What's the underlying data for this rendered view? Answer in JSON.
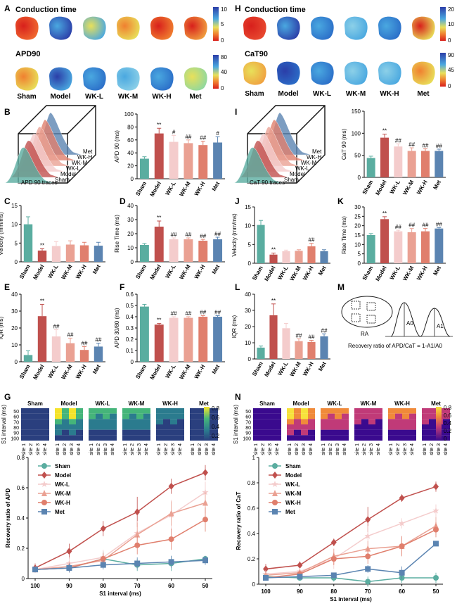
{
  "colors": {
    "sham": "#5aada0",
    "model": "#c0504d",
    "wkl": "#f4cccc",
    "wkm": "#eaa193",
    "wkh": "#e07f6d",
    "met": "#5b84b1"
  },
  "groups": [
    "Sham",
    "Model",
    "WK-L",
    "WK-M",
    "WK-H",
    "Met"
  ],
  "panels": {
    "A": {
      "letter": "A",
      "row1": "Conduction time",
      "row2": "APD90",
      "scale1": [
        "10",
        "5",
        "0"
      ],
      "scale2": [
        "80",
        "40",
        "0"
      ]
    },
    "H": {
      "letter": "H",
      "row1": "Conduction time",
      "row2": "CaT90",
      "scale1": [
        "20",
        "10",
        "0"
      ],
      "scale2": [
        "90",
        "45",
        "0"
      ]
    },
    "B": {
      "letter": "B",
      "traces_label": "APD 90  traces",
      "stack": [
        "Met",
        "WK-H",
        "WK-M",
        "WK-L",
        "Model",
        "Sham"
      ]
    },
    "I": {
      "letter": "I",
      "traces_label": "CaT 90  traces",
      "stack": [
        "Met",
        "WK-H",
        "WK-M",
        "WK-L",
        "Model",
        "Sham"
      ]
    },
    "C": {
      "letter": "C"
    },
    "D": {
      "letter": "D"
    },
    "E": {
      "letter": "E"
    },
    "F": {
      "letter": "F"
    },
    "J": {
      "letter": "J"
    },
    "K": {
      "letter": "K"
    },
    "L": {
      "letter": "L"
    },
    "M": {
      "letter": "M",
      "ra": "RA",
      "a0": "A0",
      "a1": "A1",
      "formula": "Recovery ratio of APD/CaT = 1-A1/A0"
    },
    "G": {
      "letter": "G",
      "ylabel": "S1 interval (ms)",
      "scale": [
        "0.8",
        "0.6",
        "0.4",
        "0.2"
      ],
      "sites": [
        "site 1",
        "site 2",
        "site 3",
        "site 4"
      ],
      "yticks": [
        "50",
        "60",
        "70",
        "80",
        "90",
        "100"
      ]
    },
    "N": {
      "letter": "N",
      "ylabel": "S1 interval (ms)",
      "scale": [
        "0.8",
        "0.6",
        "0.4",
        "0.2",
        "0"
      ],
      "sites": [
        "site 1",
        "site 2",
        "site 3",
        "site 4"
      ],
      "yticks": [
        "50",
        "60",
        "70",
        "80",
        "90",
        "100"
      ]
    }
  },
  "chart_data": [
    {
      "id": "B",
      "type": "bar",
      "ylabel": "APD 90 (ms)",
      "ylim": [
        0,
        100
      ],
      "yticks": [
        0,
        20,
        40,
        60,
        80,
        100
      ],
      "categories": [
        "Sham",
        "Model",
        "WK-L",
        "WK-M",
        "WK-H",
        "Met"
      ],
      "values": [
        31,
        70,
        57,
        55,
        52,
        56
      ],
      "errors": [
        3,
        8,
        10,
        5,
        6,
        9
      ],
      "annotations": [
        "",
        "**",
        "#",
        "##",
        "##",
        "#"
      ]
    },
    {
      "id": "I",
      "type": "bar",
      "ylabel": "CaT 90 (ms)",
      "ylim": [
        0,
        150
      ],
      "yticks": [
        0,
        50,
        100,
        150
      ],
      "categories": [
        "Sham",
        "Model",
        "WK-L",
        "WK-M",
        "WK-H",
        "Met"
      ],
      "values": [
        44,
        90,
        70,
        60,
        60,
        60
      ],
      "errors": [
        4,
        8,
        6,
        7,
        5,
        4
      ],
      "annotations": [
        "",
        "**",
        "##",
        "##",
        "##",
        "##"
      ]
    },
    {
      "id": "C",
      "type": "bar",
      "ylabel": "Velocity (mm/ms)",
      "ylim": [
        0,
        15
      ],
      "yticks": [
        0,
        5,
        10,
        15
      ],
      "categories": [
        "Sham",
        "Model",
        "WK-L",
        "WK-M",
        "WK-H",
        "Met"
      ],
      "values": [
        10,
        3,
        4.2,
        4.6,
        4.4,
        4.3
      ],
      "errors": [
        2,
        0.5,
        1.2,
        1,
        0.8,
        0.9
      ],
      "annotations": [
        "",
        "**",
        "",
        "",
        "",
        ""
      ]
    },
    {
      "id": "D",
      "type": "bar",
      "ylabel": "Rise Time (ms)",
      "ylim": [
        0,
        40
      ],
      "yticks": [
        0,
        10,
        20,
        30,
        40
      ],
      "categories": [
        "Sham",
        "Model",
        "WK-L",
        "WK-M",
        "WK-H",
        "Met"
      ],
      "values": [
        12,
        25,
        16,
        16,
        15,
        16
      ],
      "errors": [
        1,
        4,
        1,
        1,
        1,
        1.5
      ],
      "annotations": [
        "",
        "**",
        "##",
        "##",
        "##",
        "##"
      ]
    },
    {
      "id": "E",
      "type": "bar",
      "ylabel": "IQR (ms)",
      "ylim": [
        0,
        40
      ],
      "yticks": [
        0,
        10,
        20,
        30,
        40
      ],
      "categories": [
        "Sham",
        "Model",
        "WK-L",
        "WK-M",
        "WK-H",
        "Met"
      ],
      "values": [
        4,
        27,
        15,
        11,
        7,
        9
      ],
      "errors": [
        2.5,
        7,
        4,
        3,
        2,
        2
      ],
      "annotations": [
        "",
        "**",
        "##",
        "##",
        "##",
        "##"
      ]
    },
    {
      "id": "F",
      "type": "bar",
      "ylabel": "APD 30/80 (ms)",
      "ylim": [
        0,
        0.6
      ],
      "yticks": [
        0,
        0.1,
        0.2,
        0.3,
        0.4,
        0.5,
        0.6
      ],
      "categories": [
        "Sham",
        "Model",
        "WK-L",
        "WK-M",
        "WK-H",
        "Met"
      ],
      "values": [
        0.49,
        0.33,
        0.39,
        0.39,
        0.4,
        0.4
      ],
      "errors": [
        0.02,
        0.01,
        0.01,
        0.01,
        0.01,
        0.01
      ],
      "annotations": [
        "",
        "**",
        "##",
        "##",
        "##",
        "##"
      ]
    },
    {
      "id": "J",
      "type": "bar",
      "ylabel": "Velocity (mm/ms)",
      "ylim": [
        0,
        15
      ],
      "yticks": [
        0,
        5,
        10,
        15
      ],
      "categories": [
        "Sham",
        "Model",
        "WK-L",
        "WK-M",
        "WK-H",
        "Met"
      ],
      "values": [
        10.2,
        2.3,
        3.2,
        3.3,
        4.5,
        3.2
      ],
      "errors": [
        1.2,
        0.4,
        0.3,
        0.3,
        0.8,
        0.4
      ],
      "annotations": [
        "",
        "**",
        "",
        "",
        "##",
        ""
      ]
    },
    {
      "id": "K",
      "type": "bar",
      "ylabel": "Rise Time (ms)",
      "ylim": [
        0,
        30
      ],
      "yticks": [
        0,
        5,
        10,
        15,
        20,
        25,
        30
      ],
      "categories": [
        "Sham",
        "Model",
        "WK-L",
        "WK-M",
        "WK-H",
        "Met"
      ],
      "values": [
        15,
        23.5,
        17,
        16.5,
        17,
        18.5
      ],
      "errors": [
        0.8,
        1.3,
        0.6,
        2,
        1.5,
        0.5
      ],
      "annotations": [
        "",
        "**",
        "##",
        "##",
        "##",
        "##"
      ]
    },
    {
      "id": "L",
      "type": "bar",
      "ylabel": "IQR (ms)",
      "ylim": [
        0,
        40
      ],
      "yticks": [
        0,
        10,
        20,
        30,
        40
      ],
      "categories": [
        "Sham",
        "Model",
        "WK-L",
        "WK-M",
        "WK-H",
        "Met"
      ],
      "values": [
        7,
        27,
        19,
        11,
        10.5,
        14
      ],
      "errors": [
        1,
        7,
        3,
        1.5,
        1,
        1.5
      ],
      "annotations": [
        "",
        "**",
        "",
        "##",
        "##",
        "##"
      ]
    },
    {
      "id": "G",
      "type": "line",
      "ylabel": "Recovery ratio of APD",
      "xlabel": "S1 interval (ms)",
      "x": [
        100,
        90,
        80,
        70,
        60,
        50
      ],
      "ylim": [
        0,
        0.8
      ],
      "yticks": [
        0,
        0.2,
        0.4,
        0.6,
        0.8
      ],
      "series": [
        {
          "name": "Sham",
          "marker": "circle",
          "values": [
            0.06,
            0.07,
            0.13,
            0.09,
            0.1,
            0.13
          ],
          "errors": [
            0.02,
            0.03,
            0.05,
            0.04,
            0.05,
            0.02
          ]
        },
        {
          "name": "Model",
          "marker": "diamond",
          "values": [
            0.07,
            0.18,
            0.33,
            0.44,
            0.61,
            0.7
          ],
          "errors": [
            0.03,
            0.05,
            0.05,
            0.1,
            0.05,
            0.05
          ]
        },
        {
          "name": "WK-L",
          "marker": "star",
          "values": [
            0.06,
            0.1,
            0.14,
            0.3,
            0.42,
            0.57
          ],
          "errors": [
            0.02,
            0.04,
            0.05,
            0.08,
            0.1,
            0.07
          ]
        },
        {
          "name": "WK-M",
          "marker": "triangle",
          "values": [
            0.06,
            0.08,
            0.12,
            0.29,
            0.43,
            0.5
          ],
          "errors": [
            0.02,
            0.03,
            0.04,
            0.08,
            0.08,
            0.07
          ]
        },
        {
          "name": "WK-H",
          "marker": "circle",
          "values": [
            0.06,
            0.07,
            0.13,
            0.22,
            0.26,
            0.39
          ],
          "errors": [
            0.02,
            0.03,
            0.04,
            0.06,
            0.07,
            0.08
          ]
        },
        {
          "name": "Met",
          "marker": "square",
          "values": [
            0.06,
            0.07,
            0.09,
            0.1,
            0.11,
            0.12
          ],
          "errors": [
            0.02,
            0.03,
            0.03,
            0.04,
            0.04,
            0.03
          ]
        }
      ]
    },
    {
      "id": "N",
      "type": "line",
      "ylabel": "Recovery ratio of CaT",
      "xlabel": "S1 interval (ms)",
      "x": [
        100,
        90,
        80,
        70,
        60,
        50
      ],
      "ylim": [
        0,
        1.0
      ],
      "yticks": [
        0,
        0.2,
        0.4,
        0.6,
        0.8,
        1.0
      ],
      "series": [
        {
          "name": "Sham",
          "marker": "circle",
          "values": [
            0.06,
            0.05,
            0.05,
            0.02,
            0.05,
            0.05
          ],
          "errors": [
            0.03,
            0.02,
            0.03,
            0.04,
            0.04,
            0.04
          ]
        },
        {
          "name": "Model",
          "marker": "diamond",
          "values": [
            0.12,
            0.15,
            0.33,
            0.51,
            0.68,
            0.77
          ],
          "errors": [
            0.04,
            0.03,
            0.03,
            0.1,
            0.03,
            0.04
          ]
        },
        {
          "name": "WK-L",
          "marker": "star",
          "values": [
            0.08,
            0.1,
            0.2,
            0.38,
            0.48,
            0.58
          ],
          "errors": [
            0.03,
            0.03,
            0.08,
            0.08,
            0.04,
            0.05
          ]
        },
        {
          "name": "WK-M",
          "marker": "triangle",
          "values": [
            0.07,
            0.09,
            0.22,
            0.28,
            0.3,
            0.46
          ],
          "errors": [
            0.03,
            0.03,
            0.06,
            0.06,
            0.07,
            0.07
          ]
        },
        {
          "name": "WK-H",
          "marker": "circle",
          "values": [
            0.05,
            0.08,
            0.2,
            0.22,
            0.3,
            0.43
          ],
          "errors": [
            0.02,
            0.03,
            0.05,
            0.06,
            0.08,
            0.06
          ]
        },
        {
          "name": "Met",
          "marker": "square",
          "values": [
            0.05,
            0.06,
            0.07,
            0.12,
            0.09,
            0.32
          ],
          "errors": [
            0.02,
            0.02,
            0.02,
            0.03,
            0.05,
            0.02
          ]
        }
      ]
    }
  ]
}
